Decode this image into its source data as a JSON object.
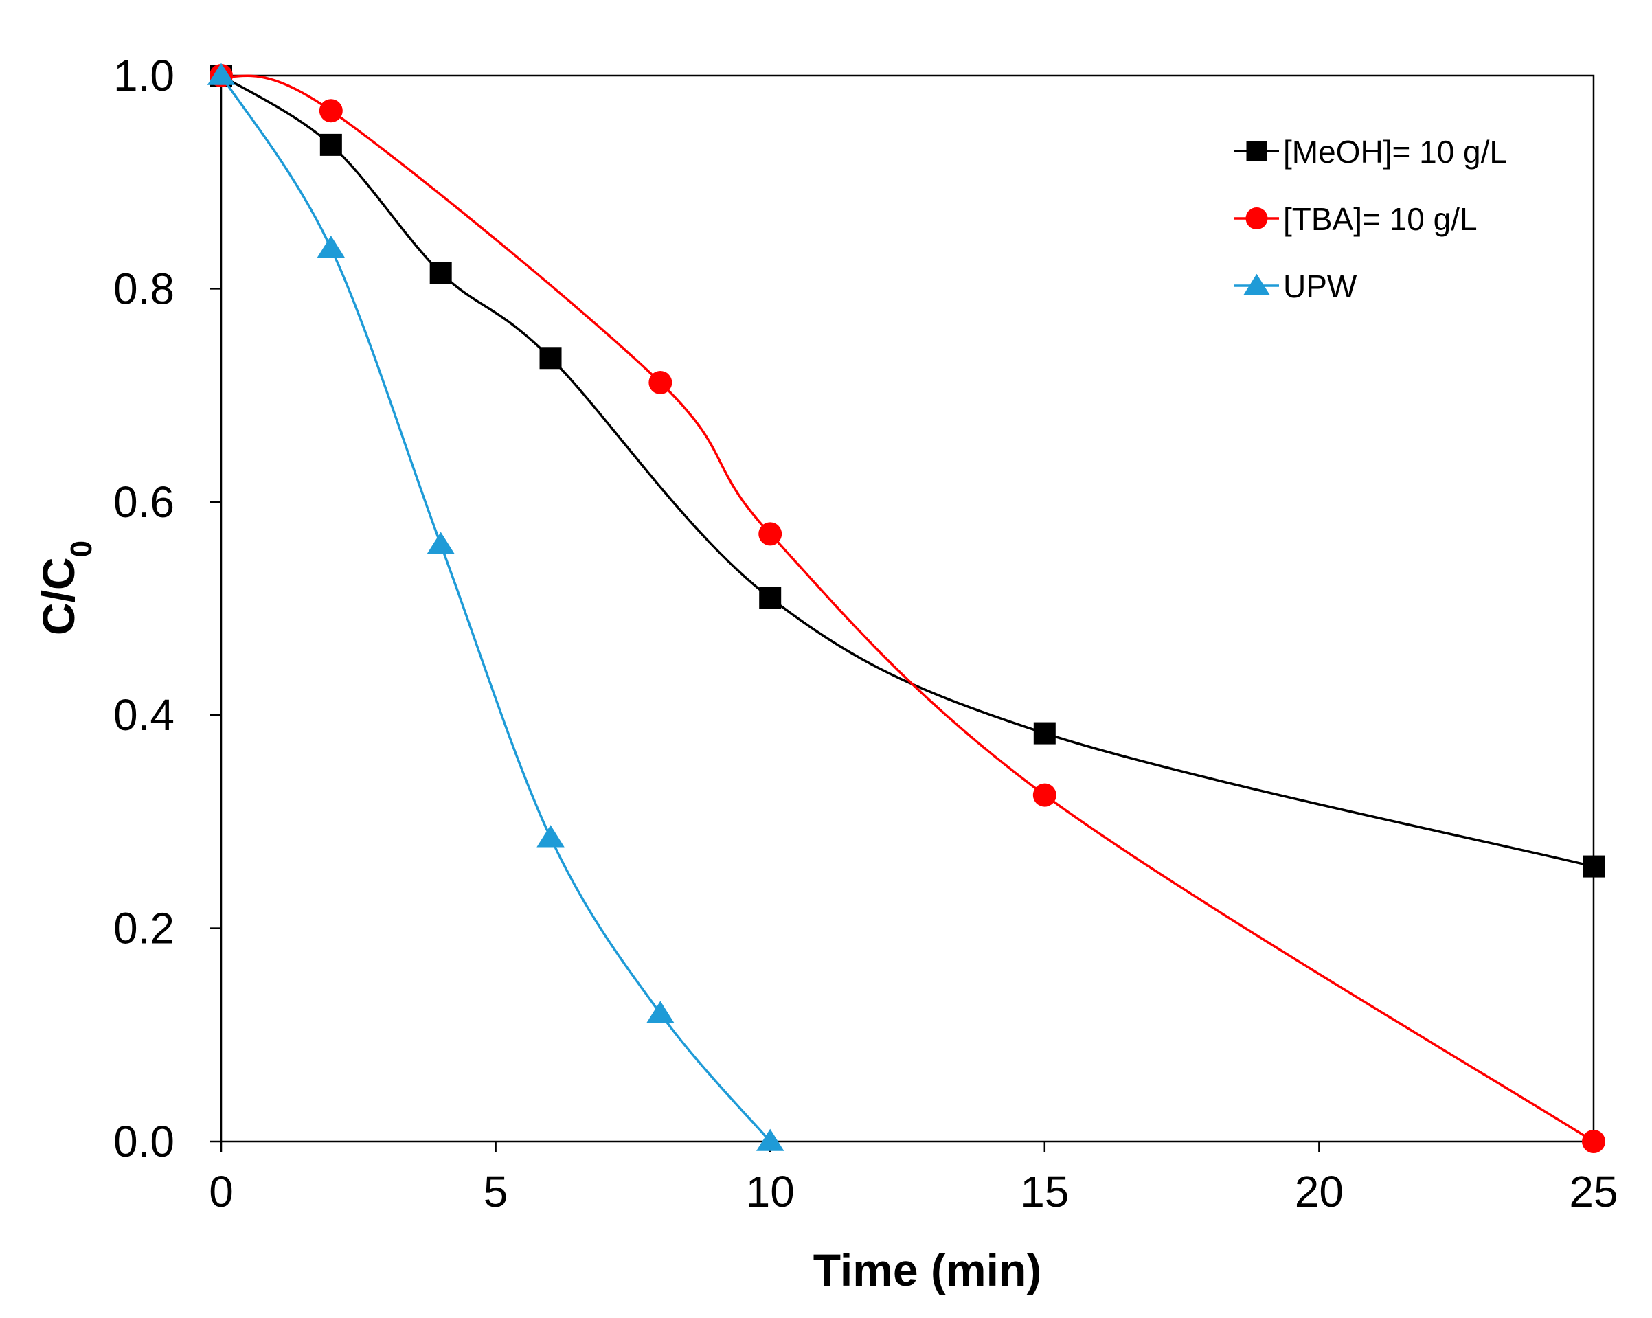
{
  "chart_data": {
    "type": "line",
    "title": "",
    "xlabel": "Time (min)",
    "ylabel": "C/C",
    "ylabel_subscript": "0",
    "xlim": [
      0,
      25
    ],
    "ylim": [
      0,
      1.0
    ],
    "xticks": [
      0,
      5,
      10,
      15,
      20,
      25
    ],
    "xtick_labels": [
      "0",
      "5",
      "10",
      "15",
      "20",
      "25"
    ],
    "yticks": [
      0,
      0.2,
      0.4,
      0.6,
      0.8,
      1.0
    ],
    "ytick_labels": [
      "0.0",
      "0.2",
      "0.4",
      "0.6",
      "0.8",
      "1.0"
    ],
    "grid": false,
    "legend_position": "top-right",
    "series": [
      {
        "name": "[MeOH]= 10 g/L",
        "color": "#000000",
        "marker": "square",
        "x": [
          0,
          2,
          4,
          6,
          10,
          15,
          25
        ],
        "y": [
          1.0,
          0.935,
          0.815,
          0.735,
          0.51,
          0.383,
          0.258
        ]
      },
      {
        "name": "[TBA]= 10 g/L",
        "color": "#ff0000",
        "marker": "circle",
        "x": [
          0,
          2,
          8,
          10,
          15,
          25
        ],
        "y": [
          1.0,
          0.967,
          0.712,
          0.57,
          0.325,
          0.0
        ]
      },
      {
        "name": "UPW",
        "color": "#1f9bd7",
        "marker": "triangle",
        "x": [
          0,
          2,
          4,
          6,
          8,
          10
        ],
        "y": [
          1.0,
          0.838,
          0.56,
          0.285,
          0.12,
          0.0
        ]
      }
    ]
  }
}
